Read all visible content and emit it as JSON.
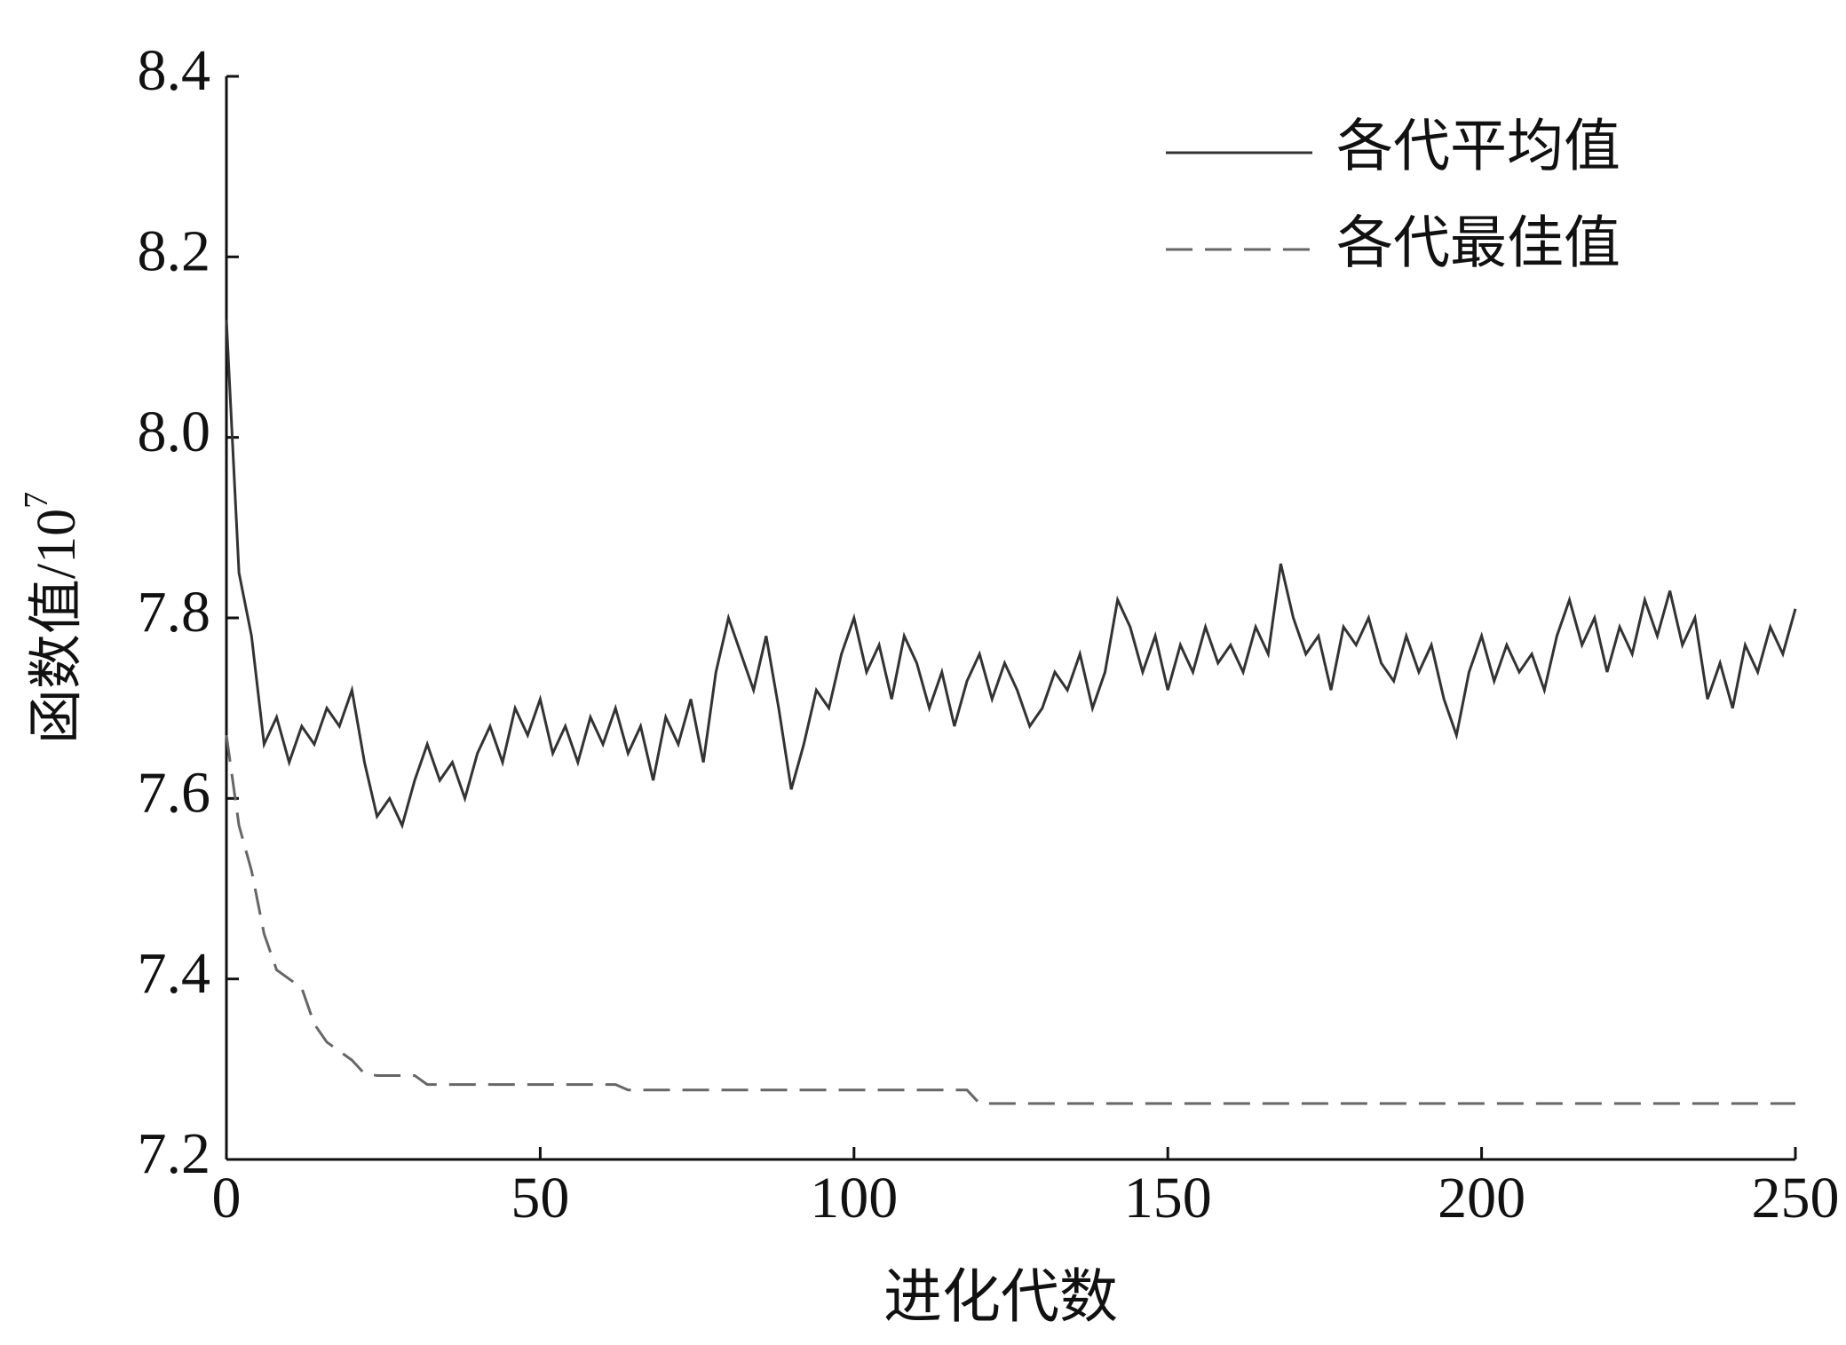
{
  "chart_data": {
    "type": "line",
    "x_label": "进化代数",
    "y_label": {
      "text": "函数值/10",
      "superscript": "7"
    },
    "x": [
      0,
      2,
      4,
      6,
      8,
      10,
      12,
      14,
      16,
      18,
      20,
      22,
      24,
      26,
      28,
      30,
      32,
      34,
      36,
      38,
      40,
      42,
      44,
      46,
      48,
      50,
      52,
      54,
      56,
      58,
      60,
      62,
      64,
      66,
      68,
      70,
      72,
      74,
      76,
      78,
      80,
      82,
      84,
      86,
      88,
      90,
      92,
      94,
      96,
      98,
      100,
      102,
      104,
      106,
      108,
      110,
      112,
      114,
      116,
      118,
      120,
      122,
      124,
      126,
      128,
      130,
      132,
      134,
      136,
      138,
      140,
      142,
      144,
      146,
      148,
      150,
      152,
      154,
      156,
      158,
      160,
      162,
      164,
      166,
      168,
      170,
      172,
      174,
      176,
      178,
      180,
      182,
      184,
      186,
      188,
      190,
      192,
      194,
      196,
      198,
      200,
      202,
      204,
      206,
      208,
      210,
      212,
      214,
      216,
      218,
      220,
      222,
      224,
      226,
      228,
      230,
      232,
      234,
      236,
      238,
      240,
      242,
      244,
      246,
      248,
      250
    ],
    "series": [
      {
        "name": "各代平均值",
        "color": "#333333",
        "line_style": "solid",
        "values": [
          8.13,
          7.85,
          7.78,
          7.66,
          7.69,
          7.64,
          7.68,
          7.66,
          7.7,
          7.68,
          7.72,
          7.64,
          7.58,
          7.6,
          7.57,
          7.62,
          7.66,
          7.62,
          7.64,
          7.6,
          7.65,
          7.68,
          7.64,
          7.7,
          7.67,
          7.71,
          7.65,
          7.68,
          7.64,
          7.69,
          7.66,
          7.7,
          7.65,
          7.68,
          7.62,
          7.69,
          7.66,
          7.71,
          7.64,
          7.74,
          7.8,
          7.76,
          7.72,
          7.78,
          7.7,
          7.61,
          7.66,
          7.72,
          7.7,
          7.76,
          7.8,
          7.74,
          7.77,
          7.71,
          7.78,
          7.75,
          7.7,
          7.74,
          7.68,
          7.73,
          7.76,
          7.71,
          7.75,
          7.72,
          7.68,
          7.7,
          7.74,
          7.72,
          7.76,
          7.7,
          7.74,
          7.82,
          7.79,
          7.74,
          7.78,
          7.72,
          7.77,
          7.74,
          7.79,
          7.75,
          7.77,
          7.74,
          7.79,
          7.76,
          7.86,
          7.8,
          7.76,
          7.78,
          7.72,
          7.79,
          7.77,
          7.8,
          7.75,
          7.73,
          7.78,
          7.74,
          7.77,
          7.71,
          7.67,
          7.74,
          7.78,
          7.73,
          7.77,
          7.74,
          7.76,
          7.72,
          7.78,
          7.82,
          7.77,
          7.8,
          7.74,
          7.79,
          7.76,
          7.82,
          7.78,
          7.83,
          7.77,
          7.8,
          7.71,
          7.75,
          7.7,
          7.77,
          7.74,
          7.79,
          7.76,
          7.81
        ]
      },
      {
        "name": "各代最佳值",
        "color": "#666666",
        "line_style": "dashed",
        "values": [
          7.67,
          7.57,
          7.52,
          7.45,
          7.41,
          7.4,
          7.39,
          7.35,
          7.33,
          7.32,
          7.31,
          7.295,
          7.293,
          7.293,
          7.293,
          7.293,
          7.283,
          7.283,
          7.283,
          7.283,
          7.283,
          7.283,
          7.283,
          7.283,
          7.283,
          7.283,
          7.283,
          7.283,
          7.283,
          7.283,
          7.283,
          7.283,
          7.277,
          7.277,
          7.277,
          7.277,
          7.277,
          7.277,
          7.277,
          7.277,
          7.277,
          7.277,
          7.277,
          7.277,
          7.277,
          7.277,
          7.277,
          7.277,
          7.277,
          7.277,
          7.277,
          7.277,
          7.277,
          7.277,
          7.277,
          7.277,
          7.277,
          7.277,
          7.277,
          7.277,
          7.262,
          7.262,
          7.262,
          7.262,
          7.262,
          7.262,
          7.262,
          7.262,
          7.262,
          7.262,
          7.262,
          7.262,
          7.262,
          7.262,
          7.262,
          7.262,
          7.262,
          7.262,
          7.262,
          7.262,
          7.262,
          7.262,
          7.262,
          7.262,
          7.262,
          7.262,
          7.262,
          7.262,
          7.262,
          7.262,
          7.262,
          7.262,
          7.262,
          7.262,
          7.262,
          7.262,
          7.262,
          7.262,
          7.262,
          7.262,
          7.262,
          7.262,
          7.262,
          7.262,
          7.262,
          7.262,
          7.262,
          7.262,
          7.262,
          7.262,
          7.262,
          7.262,
          7.262,
          7.262,
          7.262,
          7.262,
          7.262,
          7.262,
          7.262,
          7.262,
          7.262,
          7.262,
          7.262,
          7.262,
          7.262,
          7.262
        ]
      }
    ],
    "xlim": [
      0,
      250
    ],
    "xticks": [
      0,
      50,
      100,
      150,
      200,
      250
    ],
    "ylim": [
      7.2,
      8.4
    ],
    "yticks": [
      7.2,
      7.4,
      7.6,
      7.8,
      {
        "value": 8,
        "label": "8.0"
      },
      8.2,
      8.4
    ],
    "grid": false,
    "legend": "upper right"
  }
}
